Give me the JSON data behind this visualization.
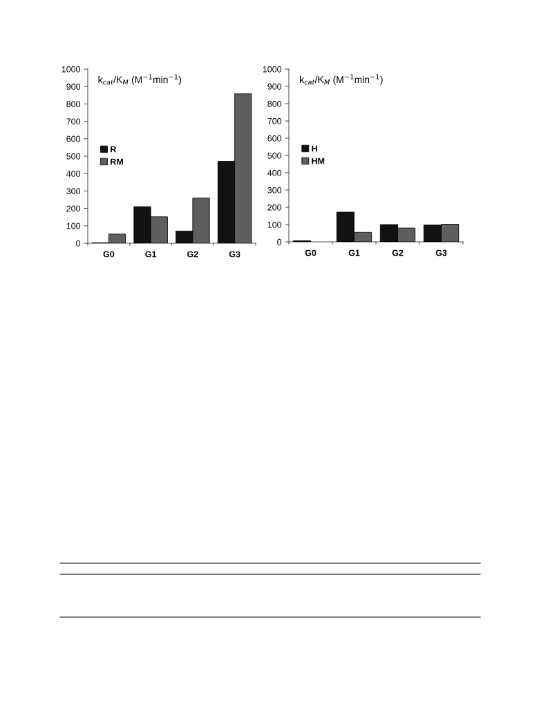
{
  "chart_data": [
    {
      "type": "bar",
      "categories": [
        "G0",
        "G1",
        "G2",
        "G3"
      ],
      "ylim": [
        0,
        1000
      ],
      "yticks": [
        0,
        100,
        200,
        300,
        400,
        500,
        600,
        700,
        800,
        900,
        1000
      ],
      "grid": false,
      "legend": "center left",
      "annotations": [
        "k$_{cat}$/K$_{M}$ (M$^{−1}$min$^{−1}$)"
      ],
      "series": [
        {
          "name": "R",
          "color": "#111111",
          "values": [
            3,
            210,
            70,
            470
          ]
        },
        {
          "name": "RM",
          "color": "#5f5f5f",
          "values": [
            53,
            152,
            260,
            858
          ]
        }
      ]
    },
    {
      "type": "bar",
      "categories": [
        "G0",
        "G1",
        "G2",
        "G3"
      ],
      "ylim": [
        0,
        1000
      ],
      "yticks": [
        0,
        100,
        200,
        300,
        400,
        500,
        600,
        700,
        800,
        900,
        1000
      ],
      "grid": false,
      "legend": "center left",
      "annotations": [
        "k$_{cat}$/K$_{M}$ (M$^{−1}$min$^{−1}$)"
      ],
      "series": [
        {
          "name": "H",
          "color": "#111111",
          "values": [
            7,
            172,
            100,
            98
          ]
        },
        {
          "name": "HM",
          "color": "#5f5f5f",
          "values": [
            null,
            55,
            80,
            102
          ]
        }
      ]
    }
  ]
}
